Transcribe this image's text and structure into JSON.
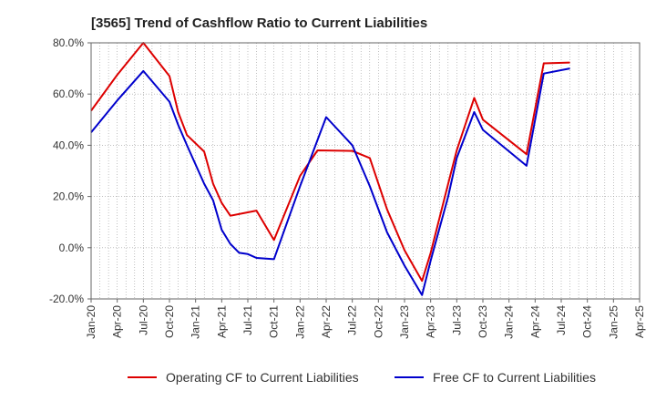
{
  "chart_data": {
    "type": "line",
    "title": "[3565]  Trend of Cashflow Ratio to Current Liabilities",
    "xlabel": "",
    "ylabel": "",
    "x": [
      "Jan-20",
      "Apr-20",
      "Jul-20",
      "Oct-20",
      "Jan-21",
      "Apr-21",
      "Jul-21",
      "Oct-21",
      "Jan-22",
      "Apr-22",
      "Jul-22",
      "Oct-22",
      "Jan-23",
      "Apr-23",
      "Jul-23",
      "Oct-23",
      "Jan-24",
      "Apr-24",
      "Jul-24",
      "Oct-24",
      "Jan-25",
      "Apr-25"
    ],
    "ylim": [
      -20,
      80
    ],
    "yticks": [
      -20,
      0,
      20,
      40,
      60,
      80
    ],
    "ytick_labels": [
      "-20.0%",
      "0.0%",
      "20.0%",
      "40.0%",
      "60.0%",
      "80.0%"
    ],
    "grid": true,
    "legend_position": "bottom",
    "series": [
      {
        "name": "Operating CF to Current Liabilities",
        "color": "#dd0000",
        "points": [
          [
            0,
            53.5
          ],
          [
            1,
            67.5
          ],
          [
            2,
            80.0
          ],
          [
            3,
            67.0
          ],
          [
            3.33,
            53.0
          ],
          [
            3.67,
            44.0
          ],
          [
            4.33,
            37.5
          ],
          [
            4.67,
            25.0
          ],
          [
            5,
            17.5
          ],
          [
            5.33,
            12.5
          ],
          [
            6.33,
            14.5
          ],
          [
            7,
            3.0
          ],
          [
            8,
            28.0
          ],
          [
            8.67,
            38.0
          ],
          [
            10,
            37.8
          ],
          [
            10.67,
            35.0
          ],
          [
            11.33,
            15.0
          ],
          [
            12,
            -1.0
          ],
          [
            12.67,
            -13.0
          ],
          [
            13,
            -2.0
          ],
          [
            13.67,
            25.0
          ],
          [
            14,
            38.0
          ],
          [
            14.67,
            58.5
          ],
          [
            15,
            50.0
          ],
          [
            16.67,
            36.5
          ],
          [
            17.33,
            72.0
          ],
          [
            18.33,
            72.3
          ]
        ]
      },
      {
        "name": "Free CF to Current Liabilities",
        "color": "#0000cc",
        "points": [
          [
            0,
            45.0
          ],
          [
            1,
            57.5
          ],
          [
            2,
            69.0
          ],
          [
            3,
            57.0
          ],
          [
            3.33,
            48.0
          ],
          [
            3.67,
            40.0
          ],
          [
            4.33,
            25.0
          ],
          [
            4.67,
            18.5
          ],
          [
            5,
            7.0
          ],
          [
            5.33,
            1.5
          ],
          [
            5.67,
            -2.0
          ],
          [
            6,
            -2.5
          ],
          [
            6.33,
            -4.0
          ],
          [
            7,
            -4.5
          ],
          [
            8,
            24.0
          ],
          [
            9,
            51.0
          ],
          [
            10,
            40.0
          ],
          [
            10.67,
            24.0
          ],
          [
            11.33,
            6.0
          ],
          [
            12,
            -7.0
          ],
          [
            12.67,
            -18.5
          ],
          [
            13,
            -5.0
          ],
          [
            13.67,
            20.0
          ],
          [
            14,
            35.0
          ],
          [
            14.67,
            53.0
          ],
          [
            15,
            46.0
          ],
          [
            16.67,
            32.0
          ],
          [
            17.33,
            68.0
          ],
          [
            18.33,
            70.0
          ]
        ]
      }
    ]
  }
}
